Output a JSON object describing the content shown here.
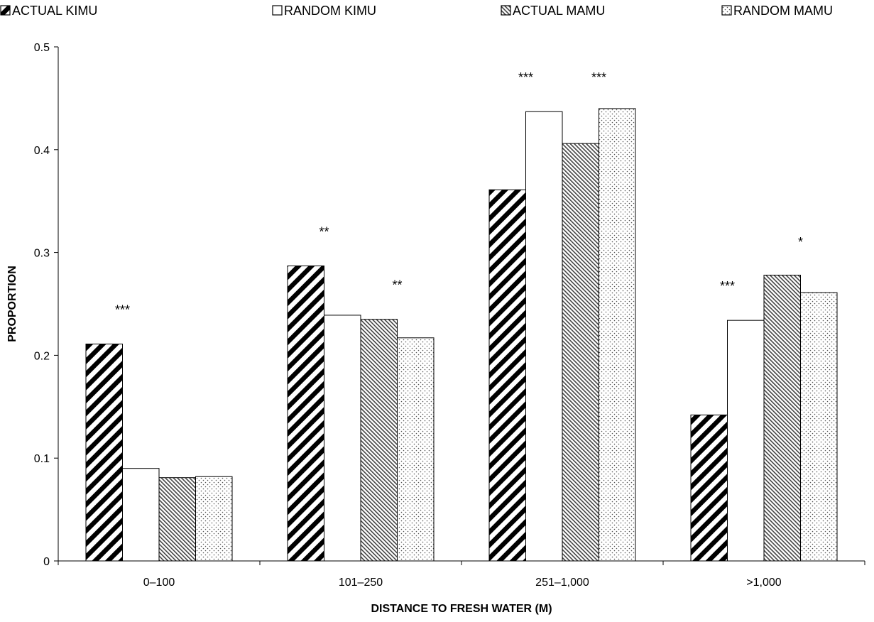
{
  "chart_data": {
    "type": "bar",
    "title": "",
    "xlabel": "DISTANCE TO FRESH WATER (M)",
    "ylabel": "PROPORTION",
    "ylim": [
      0,
      0.5
    ],
    "yticks": [
      "0",
      "0.1",
      "0.2",
      "0.3",
      "0.4",
      "0.5"
    ],
    "grid": false,
    "legend_position": "top",
    "categories": [
      "0–100",
      "101–250",
      "251–1,000",
      ">1,000"
    ],
    "series": [
      {
        "name": "ACTUAL KIMU",
        "pattern": "wide-diagonal-stripes",
        "values": [
          0.211,
          0.287,
          0.361,
          0.142
        ]
      },
      {
        "name": "RANDOM KIMU",
        "pattern": "solid-white",
        "values": [
          0.09,
          0.239,
          0.437,
          0.234
        ]
      },
      {
        "name": "ACTUAL MAMU",
        "pattern": "fine-diagonal-hatch",
        "values": [
          0.081,
          0.235,
          0.406,
          0.278
        ]
      },
      {
        "name": "RANDOM MAMU",
        "pattern": "dots",
        "values": [
          0.082,
          0.217,
          0.44,
          0.261
        ]
      }
    ],
    "annotations": [
      {
        "text": "***",
        "category_index": 0,
        "between": "ACTUAL KIMU/RANDOM KIMU",
        "y": 0.24
      },
      {
        "text": "**",
        "category_index": 1,
        "between": "ACTUAL KIMU/RANDOM KIMU",
        "y": 0.316
      },
      {
        "text": "**",
        "category_index": 1,
        "between": "ACTUAL MAMU/RANDOM MAMU",
        "y": 0.264
      },
      {
        "text": "***",
        "category_index": 2,
        "between": "ACTUAL KIMU/RANDOM KIMU",
        "y": 0.466
      },
      {
        "text": "***",
        "category_index": 2,
        "between": "ACTUAL MAMU/RANDOM MAMU",
        "y": 0.466
      },
      {
        "text": "***",
        "category_index": 3,
        "between": "ACTUAL KIMU/RANDOM KIMU",
        "y": 0.263
      },
      {
        "text": "*",
        "category_index": 3,
        "between": "ACTUAL MAMU/RANDOM MAMU",
        "y": 0.306
      }
    ]
  }
}
